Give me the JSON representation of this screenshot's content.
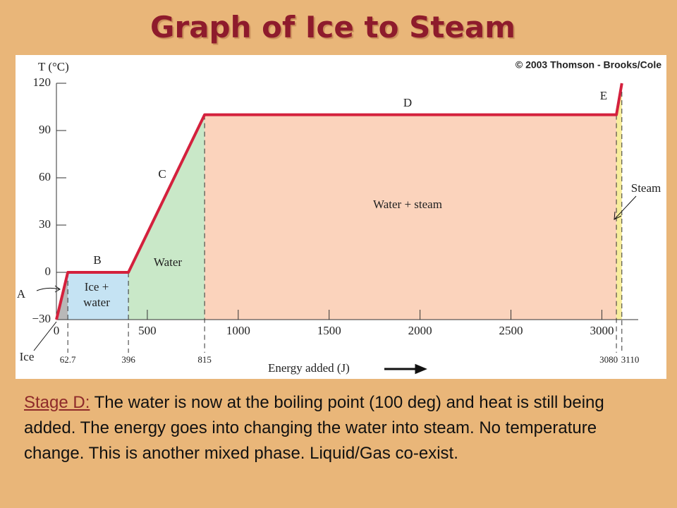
{
  "header": {
    "title": "Graph of Ice to Steam"
  },
  "chart_data": {
    "type": "line",
    "y_label": "T (°C)",
    "x_label": "Energy added (J)",
    "credit": "© 2003 Thomson - Brooks/Cole",
    "x": [
      0,
      62.7,
      396,
      815,
      3080,
      3110
    ],
    "values": [
      -30,
      0,
      0,
      100,
      100,
      120
    ],
    "color": "#d4213d",
    "xlim": [
      0,
      3200
    ],
    "xticks": [
      0,
      500,
      1000,
      1500,
      2000,
      2500,
      3000
    ],
    "ylim": [
      -30,
      120
    ],
    "yticks": [
      {
        "value": -30,
        "label": "−30"
      },
      0,
      30,
      60,
      90,
      120
    ],
    "segment_labels": [
      "A",
      "B",
      "C",
      "D",
      "E"
    ],
    "region_labels": [
      [
        "Ice +",
        "water"
      ],
      [
        "Water"
      ],
      [
        "Water + steam"
      ],
      [
        "Steam"
      ],
      [
        "Ice"
      ]
    ]
  },
  "caption": {
    "label": "Stage D:",
    "text": "The water is now at the boiling point (100 deg) and heat is still being added.  The energy goes into changing the water into steam. No temperature change.  This is another mixed phase. Liquid/Gas co-exist."
  }
}
